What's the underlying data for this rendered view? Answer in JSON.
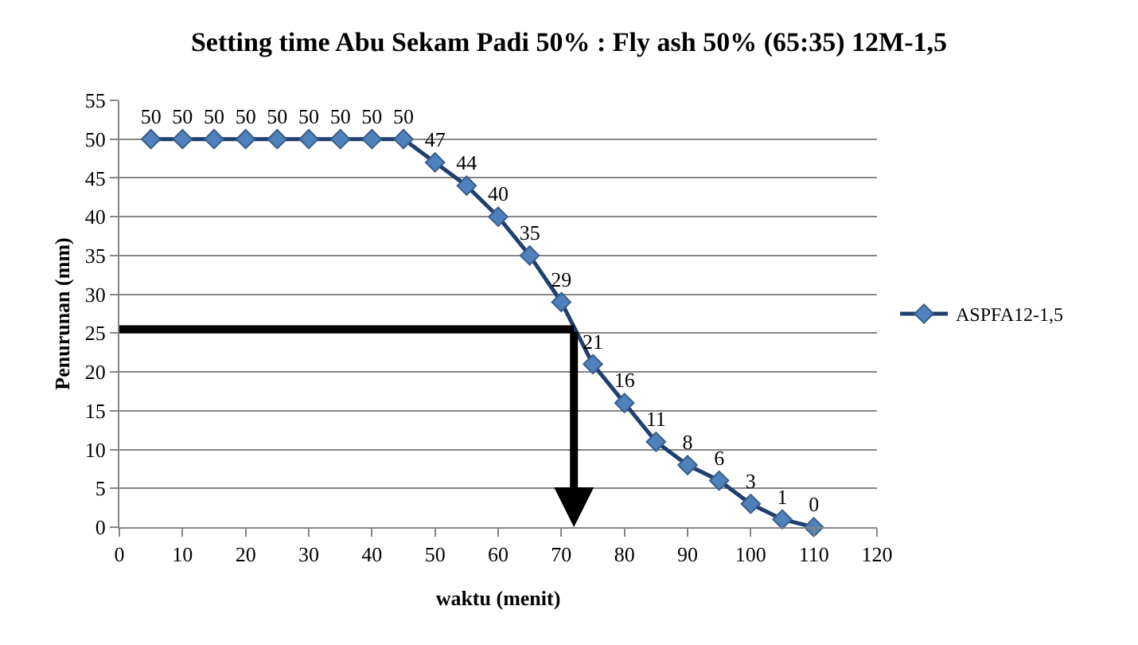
{
  "chart_data": {
    "type": "line",
    "title": "Setting time Abu Sekam Padi 50% : Fly ash 50% (65:35) 12M-1,5",
    "xlabel": "waktu (menit)",
    "ylabel": "Penurunan (mm)",
    "x": [
      5,
      10,
      15,
      20,
      25,
      30,
      35,
      40,
      45,
      50,
      55,
      60,
      65,
      70,
      75,
      80,
      85,
      90,
      95,
      100,
      105,
      110
    ],
    "series": [
      {
        "name": "ASPFA12-1,5",
        "color": "#1f3f6e",
        "values": [
          50,
          50,
          50,
          50,
          50,
          50,
          50,
          50,
          50,
          47,
          44,
          40,
          35,
          29,
          21,
          16,
          11,
          8,
          6,
          3,
          1,
          0
        ]
      }
    ],
    "xlim": [
      0,
      120
    ],
    "xticks": [
      0,
      10,
      20,
      30,
      40,
      50,
      60,
      70,
      80,
      90,
      100,
      110,
      120
    ],
    "ylim": [
      0,
      55
    ],
    "yticks": [
      0,
      5,
      10,
      15,
      20,
      25,
      30,
      35,
      40,
      45,
      50,
      55
    ],
    "ref_lines": [
      {
        "axis": "y",
        "value": 25.5,
        "label": null,
        "color": "#000000"
      },
      {
        "axis": "x",
        "value": 72,
        "label": null,
        "color": "#000000"
      }
    ],
    "grid": "y",
    "legend": "right",
    "marker": "diamond",
    "line_style": "solid",
    "data_labels": true
  }
}
